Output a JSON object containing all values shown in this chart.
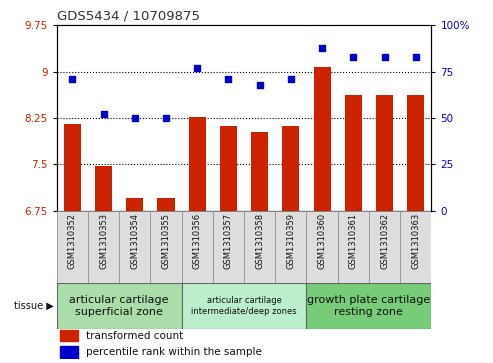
{
  "title": "GDS5434 / 10709875",
  "samples": [
    "GSM1310352",
    "GSM1310353",
    "GSM1310354",
    "GSM1310355",
    "GSM1310356",
    "GSM1310357",
    "GSM1310358",
    "GSM1310359",
    "GSM1310360",
    "GSM1310361",
    "GSM1310362",
    "GSM1310363"
  ],
  "bar_values": [
    8.15,
    7.47,
    6.95,
    6.95,
    8.27,
    8.12,
    8.02,
    8.12,
    9.08,
    8.62,
    8.62,
    8.62
  ],
  "scatter_pct": [
    71,
    52,
    50,
    50,
    77,
    71,
    68,
    71,
    88,
    83,
    83,
    83
  ],
  "ylim_left": [
    6.75,
    9.75
  ],
  "ylim_right": [
    0,
    100
  ],
  "yticks_left": [
    6.75,
    7.5,
    8.25,
    9.0,
    9.75
  ],
  "yticks_right": [
    0,
    25,
    50,
    75,
    100
  ],
  "ytick_labels_left": [
    "6.75",
    "7.5",
    "8.25",
    "9",
    "9.75"
  ],
  "ytick_labels_right": [
    "0",
    "25",
    "50",
    "75",
    "100%"
  ],
  "bar_color": "#cc2200",
  "scatter_color": "#0000cc",
  "bg_color": "#ffffff",
  "plot_bg": "#ffffff",
  "tissue_groups": [
    {
      "label": "articular cartilage\nsuperficial zone",
      "start": 0,
      "end": 4,
      "color": "#aaddaa",
      "fontsize": 8
    },
    {
      "label": "articular cartilage\nintermediate/deep zones",
      "start": 4,
      "end": 8,
      "color": "#bbeecc",
      "fontsize": 6
    },
    {
      "label": "growth plate cartilage\nresting zone",
      "start": 8,
      "end": 12,
      "color": "#77cc77",
      "fontsize": 8
    }
  ],
  "tissue_label": "tissue",
  "legend_bar_label": "transformed count",
  "legend_scatter_label": "percentile rank within the sample",
  "title_color": "#333333",
  "bar_bottom": 6.75,
  "grid_yticks": [
    7.5,
    8.25,
    9.0
  ]
}
